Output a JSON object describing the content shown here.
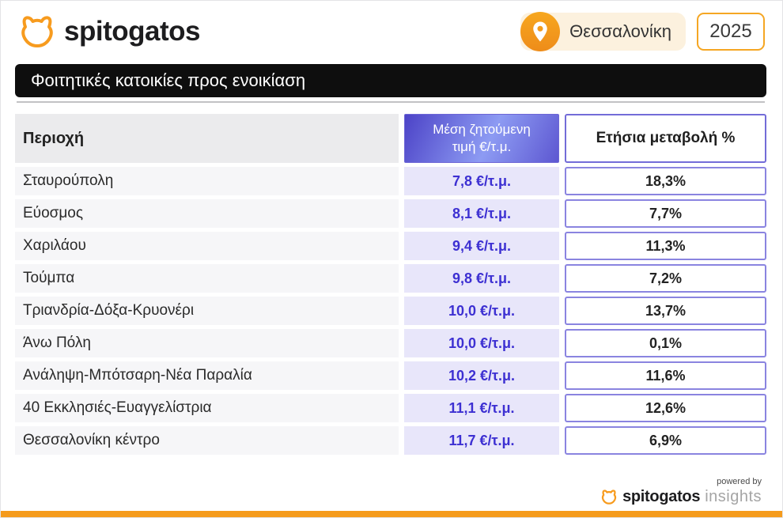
{
  "brand": {
    "name": "spitogatos",
    "cat_icon": "cat-head-icon",
    "orange": "#F79B1E"
  },
  "header": {
    "location": "Θεσσαλονίκη",
    "year": "2025",
    "pin_icon": "location-pin-icon"
  },
  "title_bar": {
    "text": "Φοιτητικές κατοικίες προς ενοικίαση"
  },
  "table": {
    "headers": {
      "area": "Περιοχή",
      "price_line1": "Μέση ζητούμενη",
      "price_line2": "τιμή €/τ.μ.",
      "change": "Ετήσια μεταβολή %"
    },
    "rows": [
      {
        "area": "Σταυρούπολη",
        "price": "7,8 €/τ.μ.",
        "change": "18,3%"
      },
      {
        "area": "Εύοσμος",
        "price": "8,1 €/τ.μ.",
        "change": "7,7%"
      },
      {
        "area": "Χαριλάου",
        "price": "9,4 €/τ.μ.",
        "change": "11,3%"
      },
      {
        "area": "Τούμπα",
        "price": "9,8 €/τ.μ.",
        "change": "7,2%"
      },
      {
        "area": "Τριανδρία-Δόξα-Κρυονέρι",
        "price": "10,0 €/τ.μ.",
        "change": "13,7%"
      },
      {
        "area": "Άνω Πόλη",
        "price": "10,0 €/τ.μ.",
        "change": "0,1%"
      },
      {
        "area": "Ανάληψη-Μπότσαρη-Νέα Παραλία",
        "price": "10,2 €/τ.μ.",
        "change": "11,6%"
      },
      {
        "area": "40 Εκκλησιές-Ευαγγελίστρια",
        "price": "11,1 €/τ.μ.",
        "change": "12,6%"
      },
      {
        "area": "Θεσσαλονίκη κέντρο",
        "price": "11,7 €/τ.μ.",
        "change": "6,9%"
      }
    ]
  },
  "footer": {
    "powered_by": "powered by",
    "brand": "spitogatos",
    "suffix": "insights"
  },
  "colors": {
    "brand_orange": "#F79B1E",
    "chip_cream": "#FCF1DE",
    "title_bar_black": "#0E0E0E",
    "price_header_gradient_start": "#4C43C7",
    "price_header_gradient_end": "#8D9BF3",
    "price_cell_lavender": "#E8E6FA",
    "price_text_indigo": "#3D30D2",
    "pct_border_purple": "#8A84E0",
    "row_gray": "#F6F6F8"
  },
  "chart_data": {
    "type": "table",
    "title": "Φοιτητικές κατοικίες προς ενοικίαση",
    "location": "Θεσσαλονίκη",
    "year": 2025,
    "columns": [
      "Περιοχή",
      "Μέση ζητούμενη τιμή €/τ.μ.",
      "Ετήσια μεταβολή %"
    ],
    "rows": [
      [
        "Σταυρούπολη",
        7.8,
        18.3
      ],
      [
        "Εύοσμος",
        8.1,
        7.7
      ],
      [
        "Χαριλάου",
        9.4,
        11.3
      ],
      [
        "Τούμπα",
        9.8,
        7.2
      ],
      [
        "Τριανδρία-Δόξα-Κρυονέρι",
        10.0,
        13.7
      ],
      [
        "Άνω Πόλη",
        10.0,
        0.1
      ],
      [
        "Ανάληψη-Μπότσαρη-Νέα Παραλία",
        10.2,
        11.6
      ],
      [
        "40 Εκκλησιές-Ευαγγελίστρια",
        11.1,
        12.6
      ],
      [
        "Θεσσαλονίκη κέντρο",
        11.7,
        6.9
      ]
    ],
    "units": {
      "price": "€/τ.μ.",
      "change": "%"
    },
    "notes": "prices use comma decimal separator as displayed"
  }
}
